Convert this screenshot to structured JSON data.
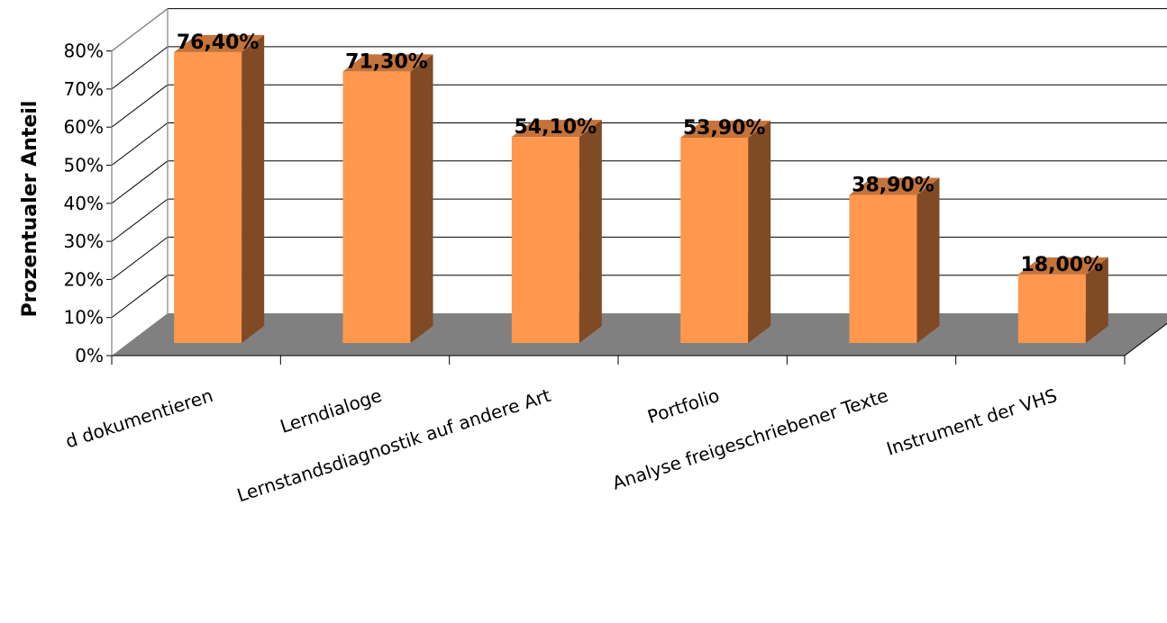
{
  "chart_data": {
    "type": "bar",
    "title": "",
    "xlabel": "",
    "ylabel": "Prozentualer Anteil",
    "ylim": [
      0,
      80
    ],
    "yticks": [
      "0%",
      "10%",
      "20%",
      "30%",
      "40%",
      "50%",
      "60%",
      "70%",
      "80%"
    ],
    "grid": true,
    "three_d": true,
    "categories": [
      "d dokumentieren",
      "Lerndialoge",
      "Lernstandsdiagnostik auf andere Art",
      "Portfolio",
      "Analyse freigeschriebener Texte",
      "Instrument der VHS"
    ],
    "values": [
      76.4,
      71.3,
      54.1,
      53.9,
      38.9,
      18.0
    ],
    "data_labels": [
      "76,40%",
      "71,30%",
      "54,10%",
      "53,90%",
      "38,90%",
      "18,00%"
    ],
    "colors": {
      "bar_front": "#FF974D",
      "bar_top": "#C4733A",
      "bar_side": "#804A25",
      "floor": "#808080",
      "grid": "#000000"
    }
  }
}
